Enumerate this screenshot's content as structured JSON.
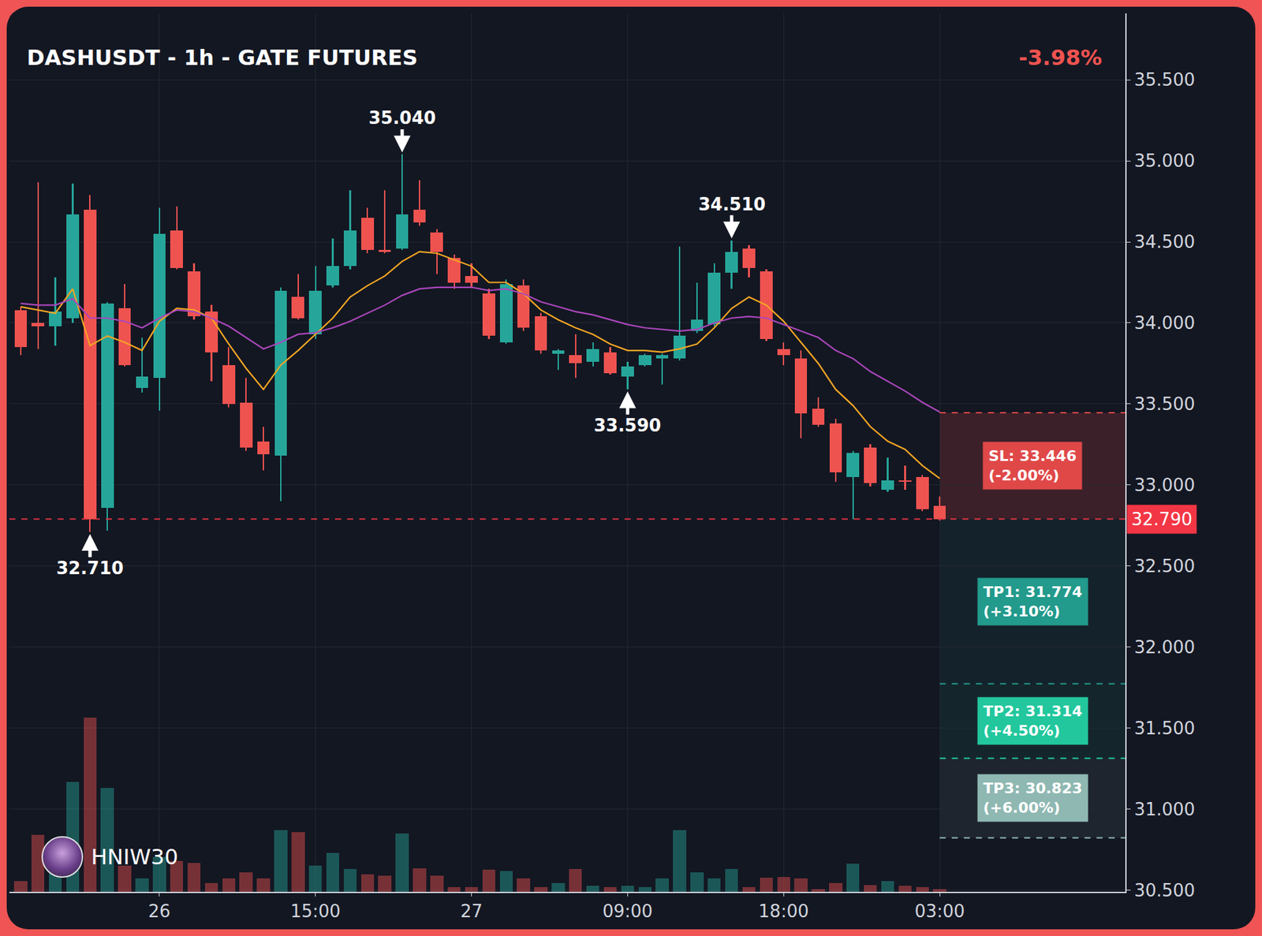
{
  "chart_data": {
    "type": "candlestick",
    "title": "DASHUSDT - 1h - GATE FUTURES",
    "subtitle": "-3.98%",
    "watermark": "HNIW30",
    "categories": [
      null,
      null,
      null,
      null,
      null,
      null,
      null,
      null,
      "26",
      null,
      null,
      null,
      null,
      null,
      null,
      null,
      null,
      "15:00",
      null,
      null,
      null,
      null,
      null,
      null,
      null,
      null,
      "27",
      null,
      null,
      null,
      null,
      null,
      null,
      null,
      null,
      "09:00",
      null,
      null,
      null,
      null,
      null,
      null,
      null,
      null,
      "18:00",
      null,
      null,
      null,
      null,
      null,
      null,
      null,
      null,
      "03:00"
    ],
    "series": [
      {
        "type": "candlestick",
        "open": [
          34.08,
          34.0,
          33.98,
          34.03,
          34.7,
          32.86,
          34.09,
          33.6,
          33.66,
          34.57,
          34.32,
          34.07,
          33.74,
          33.51,
          33.27,
          33.18,
          34.16,
          33.93,
          34.23,
          34.35,
          34.65,
          34.45,
          34.46,
          34.7,
          34.56,
          34.4,
          34.29,
          34.18,
          33.88,
          34.23,
          34.04,
          33.81,
          33.8,
          33.76,
          33.82,
          33.67,
          33.74,
          33.78,
          33.78,
          33.95,
          33.99,
          34.31,
          34.46,
          34.32,
          33.84,
          33.78,
          33.47,
          33.38,
          33.05,
          33.23,
          32.97,
          33.03,
          33.05,
          32.87
        ],
        "high": [
          34.1,
          34.87,
          34.28,
          34.86,
          34.79,
          34.13,
          34.24,
          33.91,
          34.71,
          34.72,
          34.37,
          34.11,
          33.85,
          33.66,
          33.36,
          34.22,
          34.3,
          34.35,
          34.52,
          34.82,
          34.71,
          34.82,
          35.04,
          34.88,
          34.58,
          34.42,
          34.37,
          34.21,
          34.27,
          34.27,
          34.06,
          33.84,
          33.93,
          33.88,
          33.85,
          33.76,
          33.81,
          33.81,
          34.47,
          34.25,
          34.37,
          34.51,
          34.48,
          34.33,
          33.88,
          33.83,
          33.54,
          33.41,
          33.21,
          33.25,
          33.17,
          33.12,
          33.06,
          32.93
        ],
        "low": [
          33.8,
          33.84,
          33.86,
          34.0,
          32.71,
          32.72,
          33.73,
          33.57,
          33.46,
          34.33,
          34.02,
          33.64,
          33.48,
          33.21,
          33.09,
          32.9,
          34.02,
          33.9,
          34.22,
          34.33,
          34.43,
          34.43,
          34.45,
          34.6,
          34.3,
          34.21,
          34.22,
          33.9,
          33.87,
          33.95,
          33.81,
          33.71,
          33.66,
          33.73,
          33.68,
          33.59,
          33.73,
          33.62,
          33.77,
          33.94,
          33.98,
          34.21,
          34.28,
          33.89,
          33.74,
          33.29,
          33.36,
          33.02,
          32.79,
          32.99,
          32.96,
          32.97,
          32.84,
          32.78
        ],
        "close": [
          33.85,
          33.98,
          34.07,
          34.67,
          32.79,
          34.12,
          33.74,
          33.67,
          34.55,
          34.34,
          34.04,
          33.82,
          33.5,
          33.23,
          33.19,
          34.2,
          34.03,
          34.2,
          34.35,
          34.57,
          34.45,
          34.44,
          34.67,
          34.62,
          34.44,
          34.25,
          34.25,
          33.92,
          34.24,
          33.97,
          33.83,
          33.83,
          33.75,
          33.84,
          33.69,
          33.73,
          33.8,
          33.8,
          33.92,
          34.02,
          34.31,
          34.44,
          34.34,
          33.9,
          33.8,
          33.44,
          33.37,
          33.08,
          33.2,
          33.01,
          33.03,
          33.02,
          32.85,
          32.79
        ],
        "colors": [
          "#ef5350",
          "#ef5350",
          "#26a69a",
          "#26a69a",
          "#ef5350",
          "#26a69a",
          "#ef5350",
          "#26a69a",
          "#26a69a",
          "#ef5350",
          "#ef5350",
          "#ef5350",
          "#ef5350",
          "#ef5350",
          "#ef5350",
          "#26a69a",
          "#ef5350",
          "#26a69a",
          "#26a69a",
          "#26a69a",
          "#ef5350",
          "#ef5350",
          "#26a69a",
          "#ef5350",
          "#ef5350",
          "#ef5350",
          "#ef5350",
          "#ef5350",
          "#26a69a",
          "#ef5350",
          "#ef5350",
          "#26a69a",
          "#ef5350",
          "#26a69a",
          "#ef5350",
          "#26a69a",
          "#26a69a",
          "#26a69a",
          "#26a69a",
          "#26a69a",
          "#26a69a",
          "#26a69a",
          "#ef5350",
          "#ef5350",
          "#ef5350",
          "#ef5350",
          "#ef5350",
          "#ef5350",
          "#26a69a",
          "#ef5350",
          "#26a69a",
          "#ef5350",
          "#ef5350",
          "#ef5350"
        ]
      },
      {
        "type": "bar",
        "axis": "y2",
        "values": [
          12,
          65,
          45,
          125,
          198,
          118,
          30,
          15,
          40,
          35,
          33,
          10,
          15,
          22,
          15,
          70,
          68,
          30,
          44,
          26,
          20,
          18,
          66,
          27,
          18,
          5,
          5,
          25,
          24,
          15,
          5,
          10,
          26,
          7,
          5,
          7,
          5,
          15,
          70,
          22,
          15,
          26,
          5,
          16,
          17,
          15,
          3,
          10,
          32,
          8,
          12,
          7,
          5,
          3
        ]
      },
      {
        "type": "line",
        "color": "#f5a623",
        "values": [
          34.1,
          34.08,
          34.06,
          34.21,
          33.86,
          33.92,
          33.88,
          33.83,
          34.01,
          34.09,
          34.08,
          34.03,
          33.87,
          33.72,
          33.59,
          33.74,
          33.83,
          33.93,
          34.03,
          34.16,
          34.23,
          34.29,
          34.38,
          34.44,
          34.43,
          34.39,
          34.35,
          34.25,
          34.25,
          34.18,
          34.08,
          34.02,
          33.97,
          33.93,
          33.87,
          33.83,
          33.83,
          33.82,
          33.84,
          33.87,
          33.97,
          34.09,
          34.16,
          34.11,
          34.01,
          33.88,
          33.75,
          33.59,
          33.49,
          33.36,
          33.27,
          33.22,
          33.12,
          33.04
        ]
      },
      {
        "type": "line",
        "color": "#ab47bc",
        "values": [
          34.12,
          34.11,
          34.11,
          34.15,
          34.03,
          34.03,
          34.01,
          33.97,
          34.03,
          34.08,
          34.07,
          34.03,
          33.98,
          33.91,
          33.84,
          33.88,
          33.93,
          33.94,
          33.97,
          34.01,
          34.06,
          34.11,
          34.17,
          34.21,
          34.22,
          34.22,
          34.22,
          34.2,
          34.21,
          34.18,
          34.13,
          34.1,
          34.07,
          34.05,
          34.02,
          33.99,
          33.97,
          33.96,
          33.95,
          33.96,
          34.0,
          34.03,
          34.04,
          34.03,
          33.99,
          33.95,
          33.91,
          33.83,
          33.78,
          33.7,
          33.64,
          33.58,
          33.51,
          33.45
        ]
      }
    ],
    "xlim": [
      -0.65,
      63.7
    ],
    "ylim": [
      30.49,
      35.91
    ],
    "yticks": [
      {
        "value": 30.5,
        "label": "30.500"
      },
      {
        "value": 31,
        "label": "31.000"
      },
      {
        "value": 31.5,
        "label": "31.500"
      },
      {
        "value": 32,
        "label": "32.000"
      },
      {
        "value": 32.5,
        "label": "32.500"
      },
      {
        "value": 33,
        "label": "33.000"
      },
      {
        "value": 33.5,
        "label": "33.500"
      },
      {
        "value": 34,
        "label": "34.000"
      },
      {
        "value": 34.5,
        "label": "34.500"
      },
      {
        "value": 35,
        "label": "35.000"
      },
      {
        "value": 35.5,
        "label": "35.500"
      }
    ],
    "y2lim": [
      0,
      1000
    ],
    "y2ticks": [],
    "grid": true,
    "annotations": [
      {
        "text": "35.040",
        "x": 22,
        "y": 35.04,
        "position": "above"
      },
      {
        "text": "34.510",
        "x": 41,
        "y": 34.51,
        "position": "above"
      },
      {
        "text": "33.590",
        "x": 35,
        "y": 33.59,
        "position": "below"
      },
      {
        "text": "32.710",
        "x": 4,
        "y": 32.71,
        "position": "below"
      }
    ],
    "price_line": {
      "value": 32.79,
      "label": "32.790",
      "color": "#f23645"
    },
    "trade_levels": [
      {
        "value": 33.446,
        "label": "SL: 33.446",
        "sublabel": "(-2.00%)",
        "color": "#e04848"
      },
      {
        "value": 31.774,
        "label": "TP1: 31.774",
        "sublabel": "(+3.10%)",
        "color": "#229a8c"
      },
      {
        "value": 31.314,
        "label": "TP2: 31.314",
        "sublabel": "(+4.50%)",
        "color": "#22c79d"
      },
      {
        "value": 30.823,
        "label": "TP3: 30.823",
        "sublabel": "(+6.00%)",
        "color": "#8fb8b2"
      }
    ]
  }
}
